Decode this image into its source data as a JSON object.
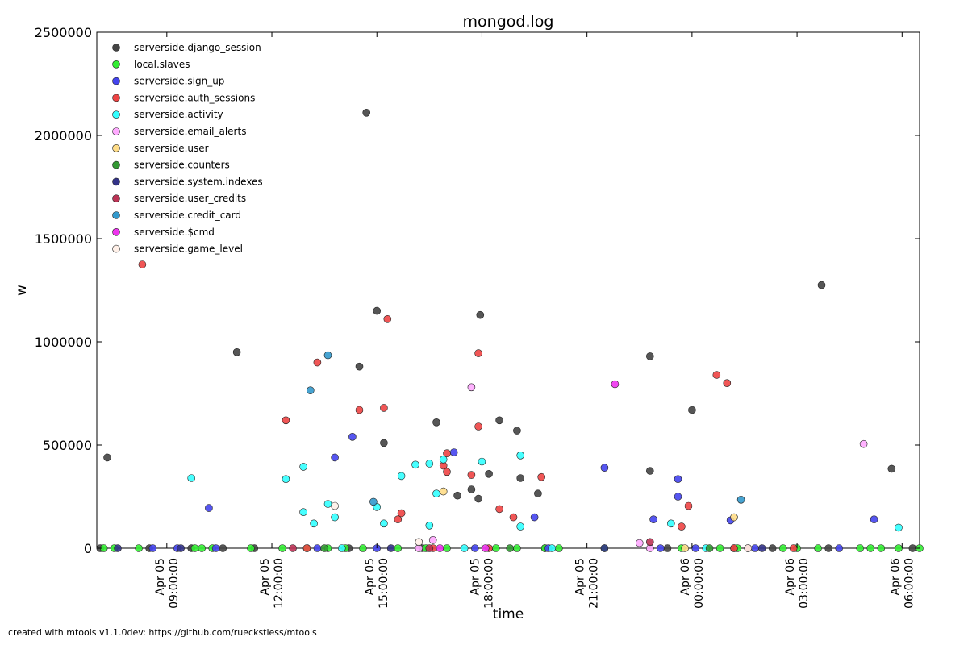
{
  "footer_text": "created with mtools v1.1.0dev: https://github.com/rueckstiess/mtools",
  "chart_data": {
    "type": "scatter",
    "title": "mongod.log",
    "xlabel": "time",
    "ylabel": "w",
    "x_unit": "hours since Apr 05 06:00",
    "xlim": [
      1.0,
      24.5
    ],
    "ylim": [
      0,
      2500000
    ],
    "yticks": [
      0,
      500000,
      1000000,
      1500000,
      2000000,
      2500000
    ],
    "xticks": [
      {
        "x": 3,
        "label": [
          "Apr 05",
          "09:00:00"
        ]
      },
      {
        "x": 6,
        "label": [
          "Apr 05",
          "12:00:00"
        ]
      },
      {
        "x": 9,
        "label": [
          "Apr 05",
          "15:00:00"
        ]
      },
      {
        "x": 12,
        "label": [
          "Apr 05",
          "18:00:00"
        ]
      },
      {
        "x": 15,
        "label": [
          "Apr 05",
          "21:00:00"
        ]
      },
      {
        "x": 18,
        "label": [
          "Apr 06",
          "00:00:00"
        ]
      },
      {
        "x": 21,
        "label": [
          "Apr 06",
          "03:00:00"
        ]
      },
      {
        "x": 24,
        "label": [
          "Apr 06",
          "06:00:00"
        ]
      }
    ],
    "legend_position": "upper-left",
    "grid": false,
    "series": [
      {
        "name": "serverside.django_session",
        "color": "#444444",
        "points": [
          [
            1.3,
            440000
          ],
          [
            8.7,
            2110000
          ],
          [
            5.0,
            950000
          ],
          [
            8.5,
            880000
          ],
          [
            9.0,
            1150000
          ],
          [
            9.2,
            510000
          ],
          [
            10.7,
            610000
          ],
          [
            11.3,
            255000
          ],
          [
            11.7,
            285000
          ],
          [
            11.9,
            240000
          ],
          [
            11.95,
            1130000
          ],
          [
            12.2,
            360000
          ],
          [
            12.5,
            620000
          ],
          [
            13.0,
            570000
          ],
          [
            13.1,
            340000
          ],
          [
            13.6,
            265000
          ],
          [
            16.8,
            930000
          ],
          [
            16.8,
            375000
          ],
          [
            18.0,
            670000
          ],
          [
            21.7,
            1275000
          ],
          [
            23.7,
            385000
          ],
          [
            1.1,
            0
          ],
          [
            2.5,
            0
          ],
          [
            3.7,
            0
          ],
          [
            4.6,
            0
          ],
          [
            5.5,
            0
          ],
          [
            8.2,
            0
          ],
          [
            10.3,
            0
          ],
          [
            13.8,
            0
          ],
          [
            17.3,
            0
          ],
          [
            19.2,
            0
          ],
          [
            20.3,
            0
          ],
          [
            21.9,
            0
          ],
          [
            24.3,
            0
          ]
        ]
      },
      {
        "name": "local.slaves",
        "color": "#33ee33",
        "points": [
          [
            1.2,
            0
          ],
          [
            1.5,
            0
          ],
          [
            2.2,
            0
          ],
          [
            3.8,
            0
          ],
          [
            4.0,
            0
          ],
          [
            4.3,
            0
          ],
          [
            5.4,
            0
          ],
          [
            6.3,
            0
          ],
          [
            7.0,
            0
          ],
          [
            7.6,
            0
          ],
          [
            8.1,
            0
          ],
          [
            8.6,
            0
          ],
          [
            9.6,
            0
          ],
          [
            10.4,
            0
          ],
          [
            11.0,
            0
          ],
          [
            12.4,
            0
          ],
          [
            13.0,
            0
          ],
          [
            13.8,
            0
          ],
          [
            14.2,
            0
          ],
          [
            15.5,
            0
          ],
          [
            17.7,
            0
          ],
          [
            18.8,
            0
          ],
          [
            19.3,
            0
          ],
          [
            20.6,
            0
          ],
          [
            21.0,
            0
          ],
          [
            21.6,
            0
          ],
          [
            22.8,
            0
          ],
          [
            23.1,
            0
          ],
          [
            23.4,
            0
          ],
          [
            23.9,
            0
          ],
          [
            24.5,
            0
          ]
        ]
      },
      {
        "name": "serverside.sign_up",
        "color": "#4444ee",
        "points": [
          [
            4.2,
            195000
          ],
          [
            8.3,
            540000
          ],
          [
            7.8,
            440000
          ],
          [
            11.2,
            465000
          ],
          [
            13.5,
            150000
          ],
          [
            15.5,
            390000
          ],
          [
            16.9,
            140000
          ],
          [
            17.6,
            335000
          ],
          [
            17.6,
            250000
          ],
          [
            19.1,
            135000
          ],
          [
            23.2,
            140000
          ],
          [
            2.6,
            0
          ],
          [
            3.3,
            0
          ],
          [
            4.4,
            0
          ],
          [
            7.3,
            0
          ],
          [
            9.0,
            0
          ],
          [
            11.8,
            0
          ],
          [
            13.9,
            0
          ],
          [
            17.1,
            0
          ],
          [
            18.1,
            0
          ],
          [
            19.8,
            0
          ],
          [
            22.2,
            0
          ]
        ]
      },
      {
        "name": "serverside.auth_sessions",
        "color": "#ee4444",
        "points": [
          [
            2.3,
            1375000
          ],
          [
            6.4,
            620000
          ],
          [
            7.3,
            900000
          ],
          [
            8.5,
            670000
          ],
          [
            9.2,
            680000
          ],
          [
            9.3,
            1110000
          ],
          [
            9.7,
            170000
          ],
          [
            9.6,
            140000
          ],
          [
            10.9,
            400000
          ],
          [
            11.0,
            460000
          ],
          [
            11.0,
            370000
          ],
          [
            11.7,
            355000
          ],
          [
            11.9,
            590000
          ],
          [
            11.9,
            945000
          ],
          [
            12.5,
            190000
          ],
          [
            12.9,
            150000
          ],
          [
            13.7,
            345000
          ],
          [
            17.7,
            105000
          ],
          [
            17.9,
            205000
          ],
          [
            18.7,
            840000
          ],
          [
            19.0,
            800000
          ],
          [
            7.0,
            0
          ],
          [
            10.6,
            0
          ],
          [
            12.2,
            0
          ],
          [
            19.2,
            0
          ],
          [
            20.9,
            0
          ]
        ]
      },
      {
        "name": "serverside.activity",
        "color": "#33ffff",
        "points": [
          [
            3.7,
            340000
          ],
          [
            6.4,
            335000
          ],
          [
            6.9,
            395000
          ],
          [
            6.9,
            175000
          ],
          [
            7.2,
            120000
          ],
          [
            7.6,
            215000
          ],
          [
            7.8,
            150000
          ],
          [
            9.0,
            200000
          ],
          [
            9.2,
            120000
          ],
          [
            9.7,
            350000
          ],
          [
            10.1,
            405000
          ],
          [
            10.5,
            410000
          ],
          [
            10.5,
            110000
          ],
          [
            10.7,
            265000
          ],
          [
            10.9,
            430000
          ],
          [
            12.0,
            420000
          ],
          [
            13.1,
            450000
          ],
          [
            13.1,
            105000
          ],
          [
            17.4,
            120000
          ],
          [
            23.9,
            100000
          ],
          [
            8.0,
            0
          ],
          [
            11.5,
            0
          ],
          [
            14.0,
            0
          ],
          [
            18.4,
            0
          ]
        ]
      },
      {
        "name": "serverside.email_alerts",
        "color": "#ffaaff",
        "points": [
          [
            11.7,
            780000
          ],
          [
            10.6,
            40000
          ],
          [
            16.5,
            25000
          ],
          [
            22.9,
            505000
          ],
          [
            10.2,
            0
          ],
          [
            16.8,
            0
          ]
        ]
      },
      {
        "name": "serverside.user",
        "color": "#ffdd88",
        "points": [
          [
            10.9,
            275000
          ],
          [
            19.2,
            150000
          ],
          [
            17.8,
            0
          ]
        ]
      },
      {
        "name": "serverside.counters",
        "color": "#339933",
        "points": [
          [
            7.5,
            0
          ],
          [
            12.8,
            0
          ],
          [
            18.5,
            0
          ]
        ]
      },
      {
        "name": "serverside.system.indexes",
        "color": "#333388",
        "points": [
          [
            1.6,
            0
          ],
          [
            3.4,
            0
          ],
          [
            9.4,
            0
          ],
          [
            15.5,
            0
          ],
          [
            20.0,
            0
          ]
        ]
      },
      {
        "name": "serverside.user_credits",
        "color": "#bb3355",
        "points": [
          [
            16.8,
            30000
          ],
          [
            6.6,
            0
          ],
          [
            10.5,
            0
          ],
          [
            19.6,
            0
          ]
        ]
      },
      {
        "name": "serverside.credit_card",
        "color": "#3399cc",
        "points": [
          [
            7.1,
            765000
          ],
          [
            7.6,
            935000
          ],
          [
            8.9,
            225000
          ],
          [
            19.4,
            235000
          ]
        ]
      },
      {
        "name": "serverside.$cmd",
        "color": "#ee33ee",
        "points": [
          [
            15.8,
            795000
          ],
          [
            10.8,
            0
          ],
          [
            12.1,
            0
          ]
        ]
      },
      {
        "name": "serverside.game_level",
        "color": "#fff0e8",
        "points": [
          [
            7.8,
            205000
          ],
          [
            10.2,
            30000
          ],
          [
            19.6,
            0
          ]
        ]
      }
    ]
  }
}
